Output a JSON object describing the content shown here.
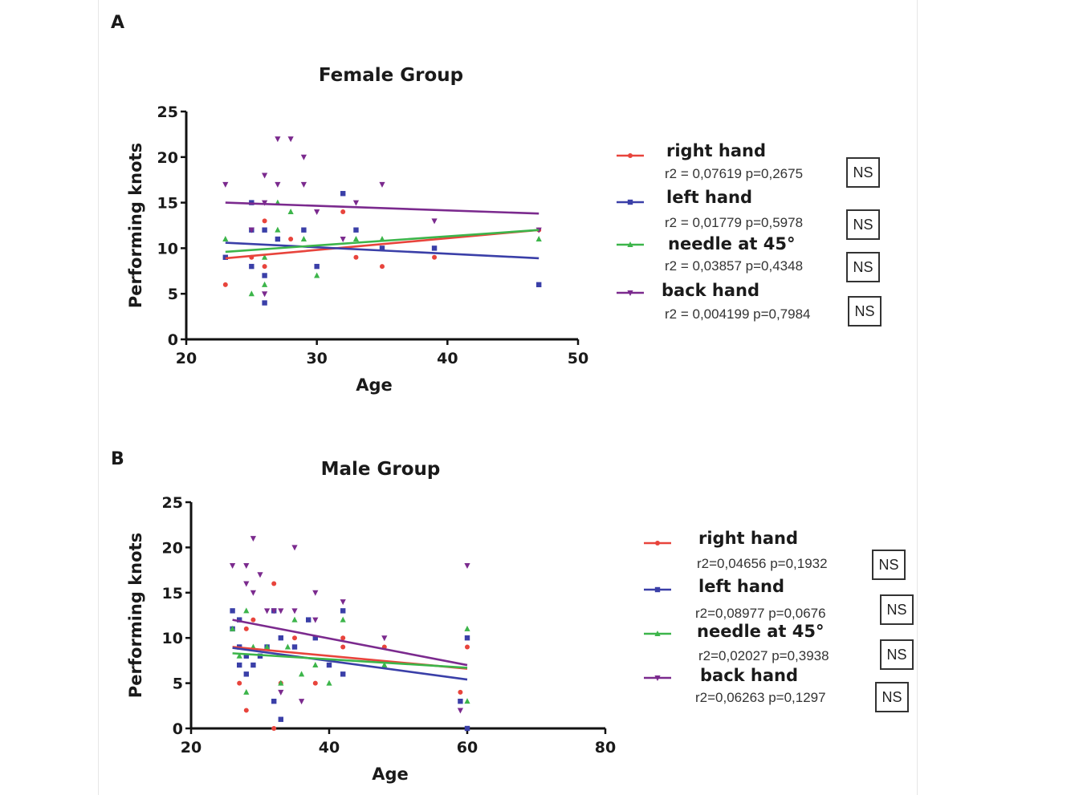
{
  "colors": {
    "right_hand": "#e8443c",
    "left_hand": "#3a3fa8",
    "needle_45": "#3cb54a",
    "back_hand": "#7b2a8e"
  },
  "chart_data": [
    {
      "type": "scatter",
      "panel_label": "A",
      "title": "Female Group",
      "xlabel": "Age",
      "ylabel": "Performing knots",
      "xlim": [
        20,
        50
      ],
      "ylim": [
        0,
        25
      ],
      "xticks": [
        20,
        30,
        40,
        50
      ],
      "yticks": [
        0,
        5,
        10,
        15,
        20,
        25
      ],
      "grid": false,
      "legend_position": "right",
      "series": [
        {
          "key": "right_hand",
          "name": "right hand",
          "marker": "circle",
          "stat": "r2 = 0,07619 p=0,2675",
          "significance": "NS",
          "fit": [
            [
              23,
              8.9
            ],
            [
              47,
              12.0
            ]
          ],
          "points": [
            [
              23,
              6
            ],
            [
              25,
              9
            ],
            [
              26,
              13
            ],
            [
              28,
              11
            ],
            [
              29,
              12
            ],
            [
              32,
              14
            ],
            [
              33,
              9
            ],
            [
              35,
              8
            ],
            [
              39,
              9
            ],
            [
              47,
              12
            ],
            [
              26,
              8
            ]
          ]
        },
        {
          "key": "left_hand",
          "name": "left hand",
          "marker": "square",
          "stat": "r2 = 0,01779 p=0,5978",
          "significance": "NS",
          "fit": [
            [
              23,
              10.6
            ],
            [
              47,
              8.9
            ]
          ],
          "points": [
            [
              23,
              9
            ],
            [
              25,
              8
            ],
            [
              25,
              15
            ],
            [
              26,
              4
            ],
            [
              26,
              7
            ],
            [
              26,
              12
            ],
            [
              27,
              11
            ],
            [
              29,
              12
            ],
            [
              30,
              8
            ],
            [
              32,
              16
            ],
            [
              33,
              12
            ],
            [
              35,
              10
            ],
            [
              39,
              10
            ],
            [
              47,
              6
            ],
            [
              25,
              12
            ]
          ]
        },
        {
          "key": "needle_45",
          "name": "needle at 45°",
          "marker": "triangle-up",
          "stat": "r2 = 0,03857 p=0,4348",
          "significance": "NS",
          "fit": [
            [
              23,
              9.6
            ],
            [
              47,
              12.0
            ]
          ],
          "points": [
            [
              23,
              11
            ],
            [
              25,
              5
            ],
            [
              26,
              6
            ],
            [
              26,
              9
            ],
            [
              27,
              15
            ],
            [
              27,
              12
            ],
            [
              28,
              14
            ],
            [
              29,
              11
            ],
            [
              30,
              7
            ],
            [
              33,
              11
            ],
            [
              35,
              11
            ],
            [
              47,
              11
            ]
          ]
        },
        {
          "key": "back_hand",
          "name": "back hand",
          "marker": "triangle-down",
          "stat": "r2 = 0,004199 p=0,7984",
          "significance": "NS",
          "fit": [
            [
              23,
              15.0
            ],
            [
              47,
              13.8
            ]
          ],
          "points": [
            [
              23,
              17
            ],
            [
              25,
              12
            ],
            [
              26,
              18
            ],
            [
              26,
              15
            ],
            [
              26,
              5
            ],
            [
              27,
              22
            ],
            [
              27,
              17
            ],
            [
              28,
              22
            ],
            [
              29,
              20
            ],
            [
              29,
              17
            ],
            [
              30,
              14
            ],
            [
              32,
              11
            ],
            [
              33,
              15
            ],
            [
              35,
              17
            ],
            [
              39,
              13
            ],
            [
              47,
              12
            ]
          ]
        }
      ]
    },
    {
      "type": "scatter",
      "panel_label": "B",
      "title": "Male Group",
      "xlabel": "Age",
      "ylabel": "Performing knots",
      "xlim": [
        20,
        80
      ],
      "ylim": [
        0,
        25
      ],
      "xticks": [
        20,
        40,
        60,
        80
      ],
      "yticks": [
        0,
        5,
        10,
        15,
        20,
        25
      ],
      "grid": false,
      "legend_position": "right",
      "series": [
        {
          "key": "right_hand",
          "name": "right hand",
          "marker": "circle",
          "stat": "r2=0,04656 p=0,1932",
          "significance": "NS",
          "fit": [
            [
              26,
              9.0
            ],
            [
              60,
              6.6
            ]
          ],
          "points": [
            [
              26,
              11
            ],
            [
              27,
              5
            ],
            [
              27,
              9
            ],
            [
              28,
              2
            ],
            [
              28,
              11
            ],
            [
              29,
              12
            ],
            [
              29,
              7
            ],
            [
              32,
              16
            ],
            [
              32,
              0
            ],
            [
              33,
              5
            ],
            [
              35,
              10
            ],
            [
              38,
              5
            ],
            [
              42,
              9
            ],
            [
              42,
              10
            ],
            [
              48,
              9
            ],
            [
              59,
              4
            ],
            [
              60,
              9
            ]
          ]
        },
        {
          "key": "left_hand",
          "name": "left hand",
          "marker": "square",
          "stat": "r2=0,08977 p=0,0676",
          "significance": "NS",
          "fit": [
            [
              26,
              8.9
            ],
            [
              60,
              5.4
            ]
          ],
          "points": [
            [
              26,
              13
            ],
            [
              27,
              12
            ],
            [
              27,
              9
            ],
            [
              27,
              7
            ],
            [
              28,
              6
            ],
            [
              28,
              8
            ],
            [
              29,
              7
            ],
            [
              30,
              8
            ],
            [
              31,
              9
            ],
            [
              32,
              3
            ],
            [
              32,
              13
            ],
            [
              33,
              1
            ],
            [
              33,
              10
            ],
            [
              35,
              9
            ],
            [
              37,
              12
            ],
            [
              38,
              10
            ],
            [
              40,
              7
            ],
            [
              42,
              6
            ],
            [
              42,
              13
            ],
            [
              59,
              3
            ],
            [
              60,
              10
            ],
            [
              60,
              0
            ],
            [
              26,
              11
            ]
          ]
        },
        {
          "key": "needle_45",
          "name": "needle at 45°",
          "marker": "triangle-up",
          "stat": "r2=0,02027 p=0,3938",
          "significance": "NS",
          "fit": [
            [
              26,
              8.3
            ],
            [
              60,
              6.7
            ]
          ],
          "points": [
            [
              26,
              11
            ],
            [
              27,
              8
            ],
            [
              28,
              4
            ],
            [
              28,
              13
            ],
            [
              29,
              9
            ],
            [
              31,
              9
            ],
            [
              33,
              5
            ],
            [
              34,
              9
            ],
            [
              35,
              12
            ],
            [
              36,
              6
            ],
            [
              38,
              7
            ],
            [
              40,
              5
            ],
            [
              42,
              12
            ],
            [
              48,
              7
            ],
            [
              60,
              11
            ],
            [
              60,
              3
            ]
          ]
        },
        {
          "key": "back_hand",
          "name": "back hand",
          "marker": "triangle-down",
          "stat": "r2=0,06263 p=0,1297",
          "significance": "NS",
          "fit": [
            [
              26,
              12.0
            ],
            [
              60,
              7.0
            ]
          ],
          "points": [
            [
              26,
              18
            ],
            [
              28,
              18
            ],
            [
              28,
              16
            ],
            [
              29,
              21
            ],
            [
              29,
              15
            ],
            [
              30,
              17
            ],
            [
              31,
              13
            ],
            [
              32,
              13
            ],
            [
              33,
              4
            ],
            [
              35,
              20
            ],
            [
              35,
              13
            ],
            [
              36,
              3
            ],
            [
              38,
              15
            ],
            [
              38,
              12
            ],
            [
              42,
              14
            ],
            [
              48,
              10
            ],
            [
              59,
              2
            ],
            [
              60,
              18
            ],
            [
              33,
              13
            ]
          ]
        }
      ]
    }
  ]
}
